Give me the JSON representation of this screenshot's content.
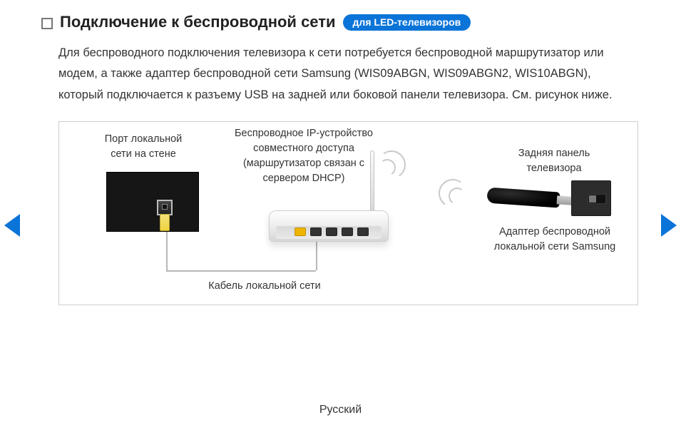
{
  "header": {
    "title": "Подключение к беспроводной сети",
    "badge": "для LED-телевизоров"
  },
  "body": {
    "paragraph": "Для беспроводного подключения телевизора к сети потребуется беспроводной маршрутизатор или модем, а также адаптер беспроводной сети Samsung (WIS09ABGN, WIS09ABGN2, WIS10ABGN), который подключается к разъему USB на задней или боковой панели телевизора. См. рисунок ниже."
  },
  "diagram": {
    "wall_port_label": "Порт локальной сети на стене",
    "router_label": "Беспроводное IP-устройство совместного доступа (маршрутизатор связан с сервером DHCP)",
    "tv_back_label": "Задняя панель телевизора",
    "adapter_label": "Адаптер беспроводной локальной сети Samsung",
    "cable_label": "Кабель локальной сети",
    "colors": {
      "box_border": "#cfcfcf",
      "cable": "#b7b7b7",
      "plug": "#f0d23e",
      "wall_bg": "#161616",
      "router_bg": "#e9e9e9",
      "dongle_bg": "#000000",
      "tv_back_bg": "#2c2c2c",
      "accent": "#0a74d8"
    }
  },
  "footer": {
    "language": "Русский"
  }
}
